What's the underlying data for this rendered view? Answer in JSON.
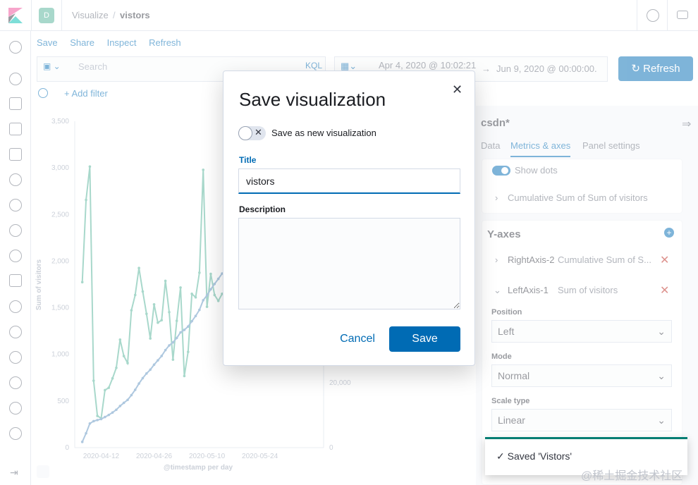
{
  "header": {
    "space_initial": "D",
    "breadcrumb_parent": "Visualize",
    "breadcrumb_separator": "/",
    "breadcrumb_current": "vistors"
  },
  "toplinks": [
    "Save",
    "Share",
    "Inspect",
    "Refresh"
  ],
  "query": {
    "placeholder": "Search",
    "language": "KQL"
  },
  "time": {
    "start": "Apr 4, 2020 @ 10:02:21",
    "arrow": "→",
    "end": "Jun 9, 2020 @ 00:00:00.",
    "refresh_label": "Refresh"
  },
  "filter": {
    "add_label": "+ Add filter"
  },
  "panel": {
    "index_title": "csdn*",
    "tabs": [
      "Data",
      "Metrics & axes",
      "Panel settings"
    ],
    "active_tab": "Metrics & axes",
    "show_dots_label": "Show dots",
    "series_item": "Cumulative Sum of Sum of visitors",
    "yaxes_title": "Y-axes",
    "axes": [
      {
        "name": "RightAxis-2",
        "desc": "Cumulative Sum of S..."
      },
      {
        "name": "LeftAxis-1",
        "desc": "Sum of visitors"
      }
    ],
    "position_label": "Position",
    "position_value": "Left",
    "mode_label": "Mode",
    "mode_value": "Normal",
    "scale_label": "Scale type",
    "scale_value": "Linear"
  },
  "modal": {
    "title": "Save visualization",
    "toggle_label": "Save as new visualization",
    "toggle_on": false,
    "title_label": "Title",
    "title_value": "vistors",
    "description_label": "Description",
    "description_value": "",
    "cancel_label": "Cancel",
    "save_label": "Save"
  },
  "toast": {
    "message": "Saved 'Vistors'"
  },
  "watermark": "@稀土掘金技术社区",
  "colors": {
    "accent": "#006bb4",
    "series_sum": "#54b399",
    "series_cumulative": "#6092c0",
    "toast_border": "#017d73"
  },
  "chart_data": {
    "type": "line",
    "xlabel": "@timestamp per day",
    "ylabel": "Sum of visitors",
    "x_ticks": [
      "2020-04-12",
      "2020-04-26",
      "2020-05-10",
      "2020-05-24"
    ],
    "y_ticks": [
      "0",
      "500",
      "1,000",
      "1,500",
      "2,000",
      "2,500",
      "3,000",
      "3,500"
    ],
    "ylim": [
      0,
      3500
    ],
    "right_y_ticks": [
      "0",
      "20,000"
    ],
    "x_start": "2020-04-07",
    "series": [
      {
        "axis": "left",
        "values": [
          1775,
          2657,
          3014,
          718,
          340,
          315,
          617,
          642,
          743,
          856,
          1158,
          982,
          907,
          1473,
          1637,
          1926,
          1674,
          1435,
          1171,
          1536,
          1340,
          1367,
          1788,
          1453,
          944,
          1360,
          1717,
          768,
          1027,
          1649,
          1612,
          1876,
          2979,
          1511,
          1863,
          1637,
          1574,
          1649
        ]
      },
      {
        "axis": "right",
        "values": [
          1775,
          4432,
          7446,
          8164,
          8504,
          8819,
          9436,
          10078,
          10821,
          11677,
          12835,
          13817,
          14724,
          16197,
          17834,
          19760,
          21434,
          22869,
          24040,
          25576,
          26916,
          28283,
          30071,
          31524,
          32468,
          33828,
          35545,
          36313,
          37340,
          38989,
          40601,
          42477,
          45456,
          46967,
          48830,
          50467,
          52041,
          53690
        ]
      }
    ]
  }
}
